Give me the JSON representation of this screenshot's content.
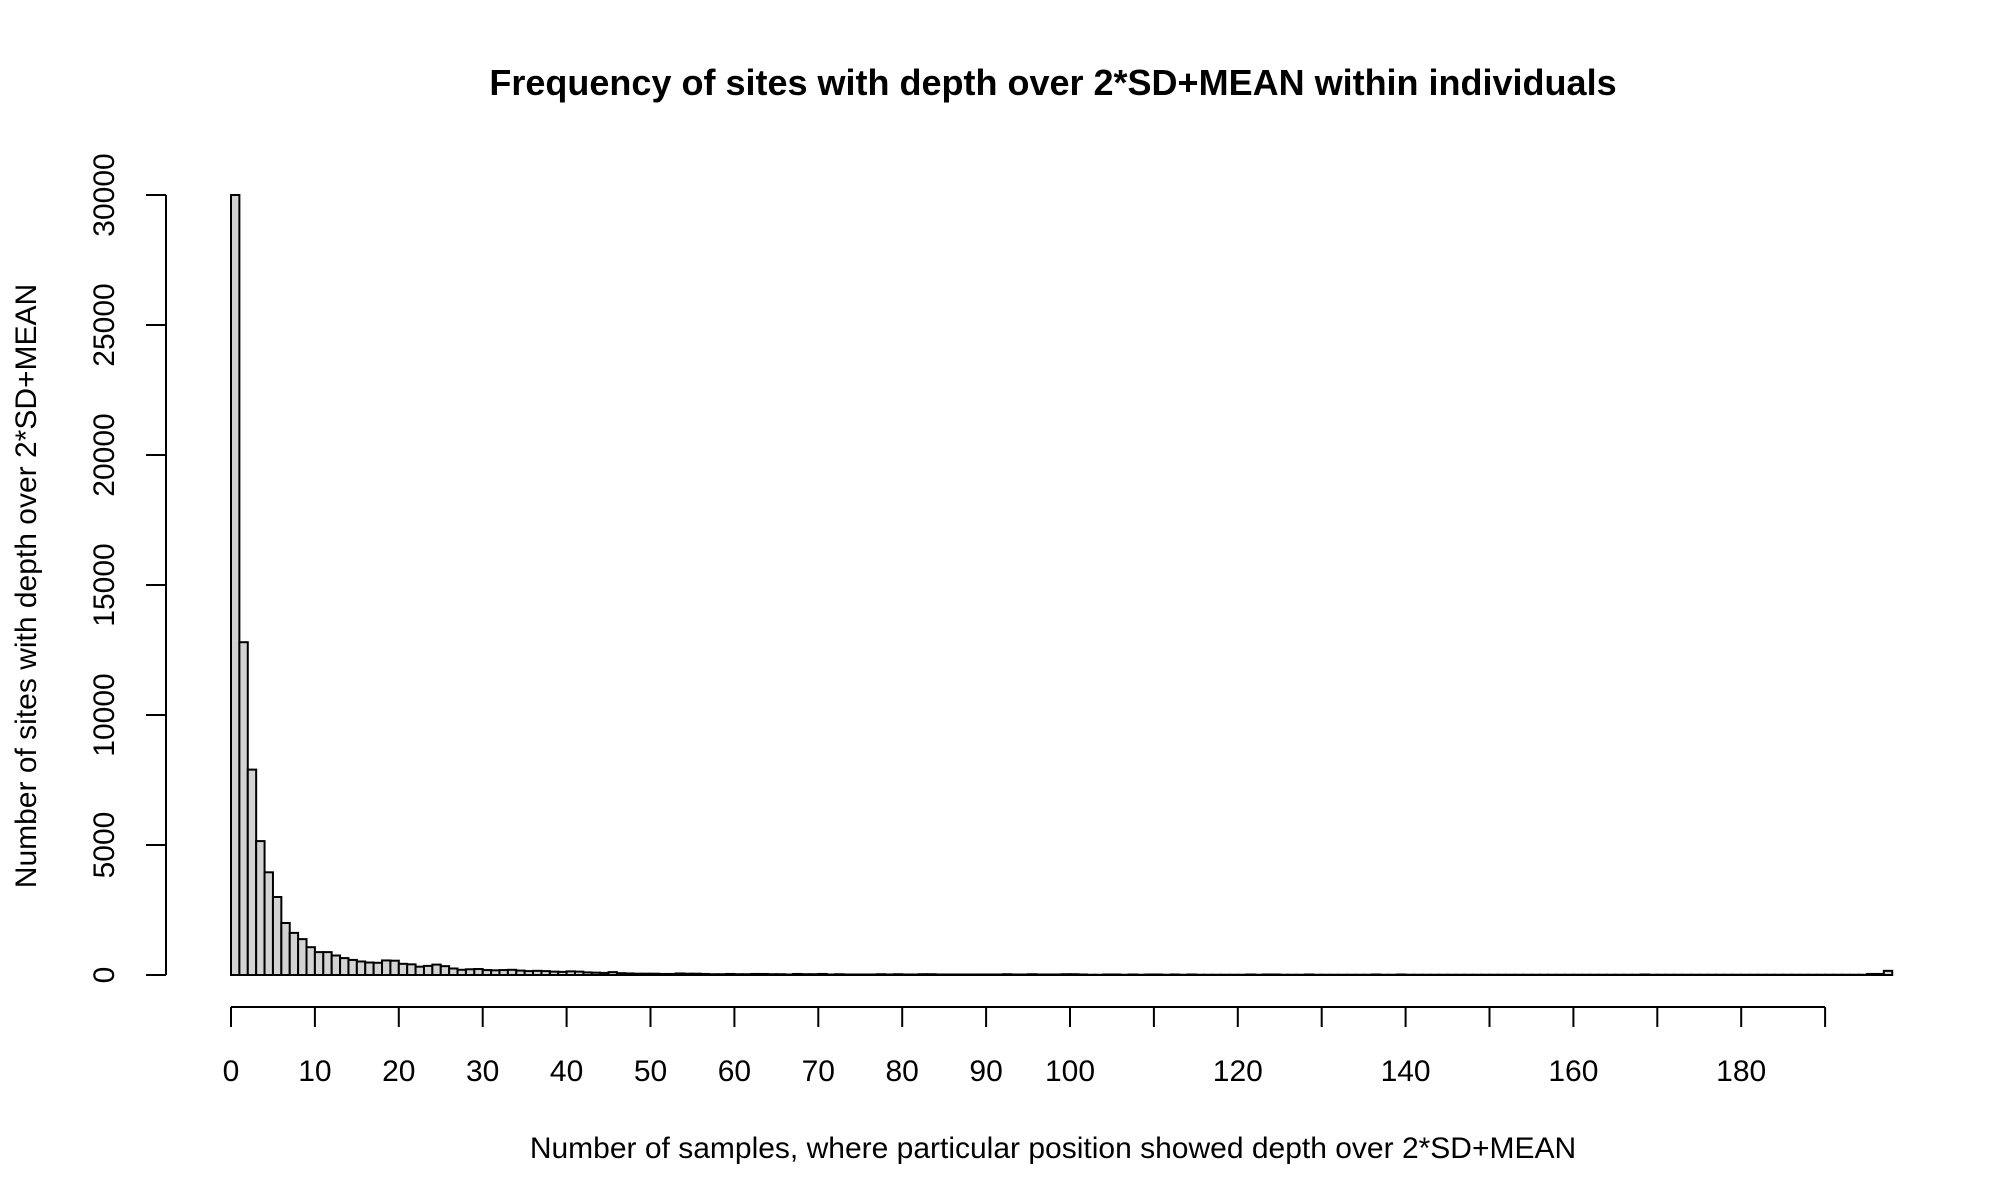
{
  "chart_data": {
    "type": "bar",
    "title": "Frequency of sites with depth over 2*SD+MEAN within individuals",
    "xlabel": "Number of samples, where particular position showed depth over 2*SD+MEAN",
    "ylabel": "Number of sites with depth over 2*SD+MEAN",
    "xlim": [
      0,
      195
    ],
    "ylim": [
      0,
      30000
    ],
    "bin_width": 1,
    "x_major_ticks": [
      0,
      10,
      20,
      30,
      40,
      50,
      60,
      70,
      80,
      90,
      100,
      120,
      140,
      160,
      180
    ],
    "x_minor_ticks": [
      110,
      130,
      150,
      170,
      190
    ],
    "x_tick_labels": [
      "0",
      "10",
      "20",
      "30",
      "40",
      "50",
      "60",
      "70",
      "80",
      "90",
      "100",
      "120",
      "140",
      "160",
      "180"
    ],
    "y_ticks": [
      0,
      5000,
      10000,
      15000,
      20000,
      25000,
      30000
    ],
    "y_tick_labels": [
      "0",
      "5000",
      "10000",
      "15000",
      "20000",
      "25000",
      "30000"
    ],
    "grid": false,
    "values": [
      30000,
      12800,
      7900,
      5150,
      3950,
      3000,
      2000,
      1620,
      1380,
      1070,
      880,
      880,
      750,
      650,
      580,
      520,
      480,
      470,
      560,
      550,
      430,
      410,
      320,
      350,
      400,
      340,
      250,
      200,
      220,
      230,
      190,
      180,
      190,
      200,
      170,
      150,
      160,
      150,
      130,
      120,
      140,
      130,
      100,
      90,
      80,
      110,
      70,
      60,
      50,
      50,
      50,
      40,
      40,
      60,
      50,
      50,
      40,
      30,
      30,
      40,
      30,
      30,
      40,
      40,
      30,
      30,
      20,
      40,
      30,
      30,
      40,
      20,
      30,
      20,
      20,
      20,
      20,
      30,
      20,
      30,
      20,
      20,
      30,
      30,
      20,
      20,
      20,
      20,
      20,
      20,
      20,
      20,
      30,
      20,
      20,
      30,
      20,
      20,
      20,
      30,
      30,
      20,
      10,
      10,
      20,
      20,
      10,
      20,
      10,
      20,
      20,
      10,
      20,
      10,
      20,
      10,
      10,
      10,
      10,
      10,
      10,
      20,
      10,
      20,
      20,
      10,
      10,
      10,
      20,
      10,
      10,
      10,
      10,
      10,
      10,
      10,
      20,
      10,
      10,
      20,
      10,
      10,
      10,
      10,
      10,
      10,
      10,
      10,
      10,
      10,
      10,
      10,
      10,
      10,
      10,
      10,
      10,
      10,
      10,
      10,
      10,
      10,
      10,
      10,
      10,
      10,
      10,
      10,
      20,
      10,
      10,
      10,
      10,
      10,
      10,
      10,
      10,
      10,
      10,
      10,
      10,
      10,
      10,
      10,
      10,
      10,
      10,
      10,
      10,
      10,
      10,
      10,
      10,
      10,
      10,
      40,
      40,
      160
    ]
  }
}
